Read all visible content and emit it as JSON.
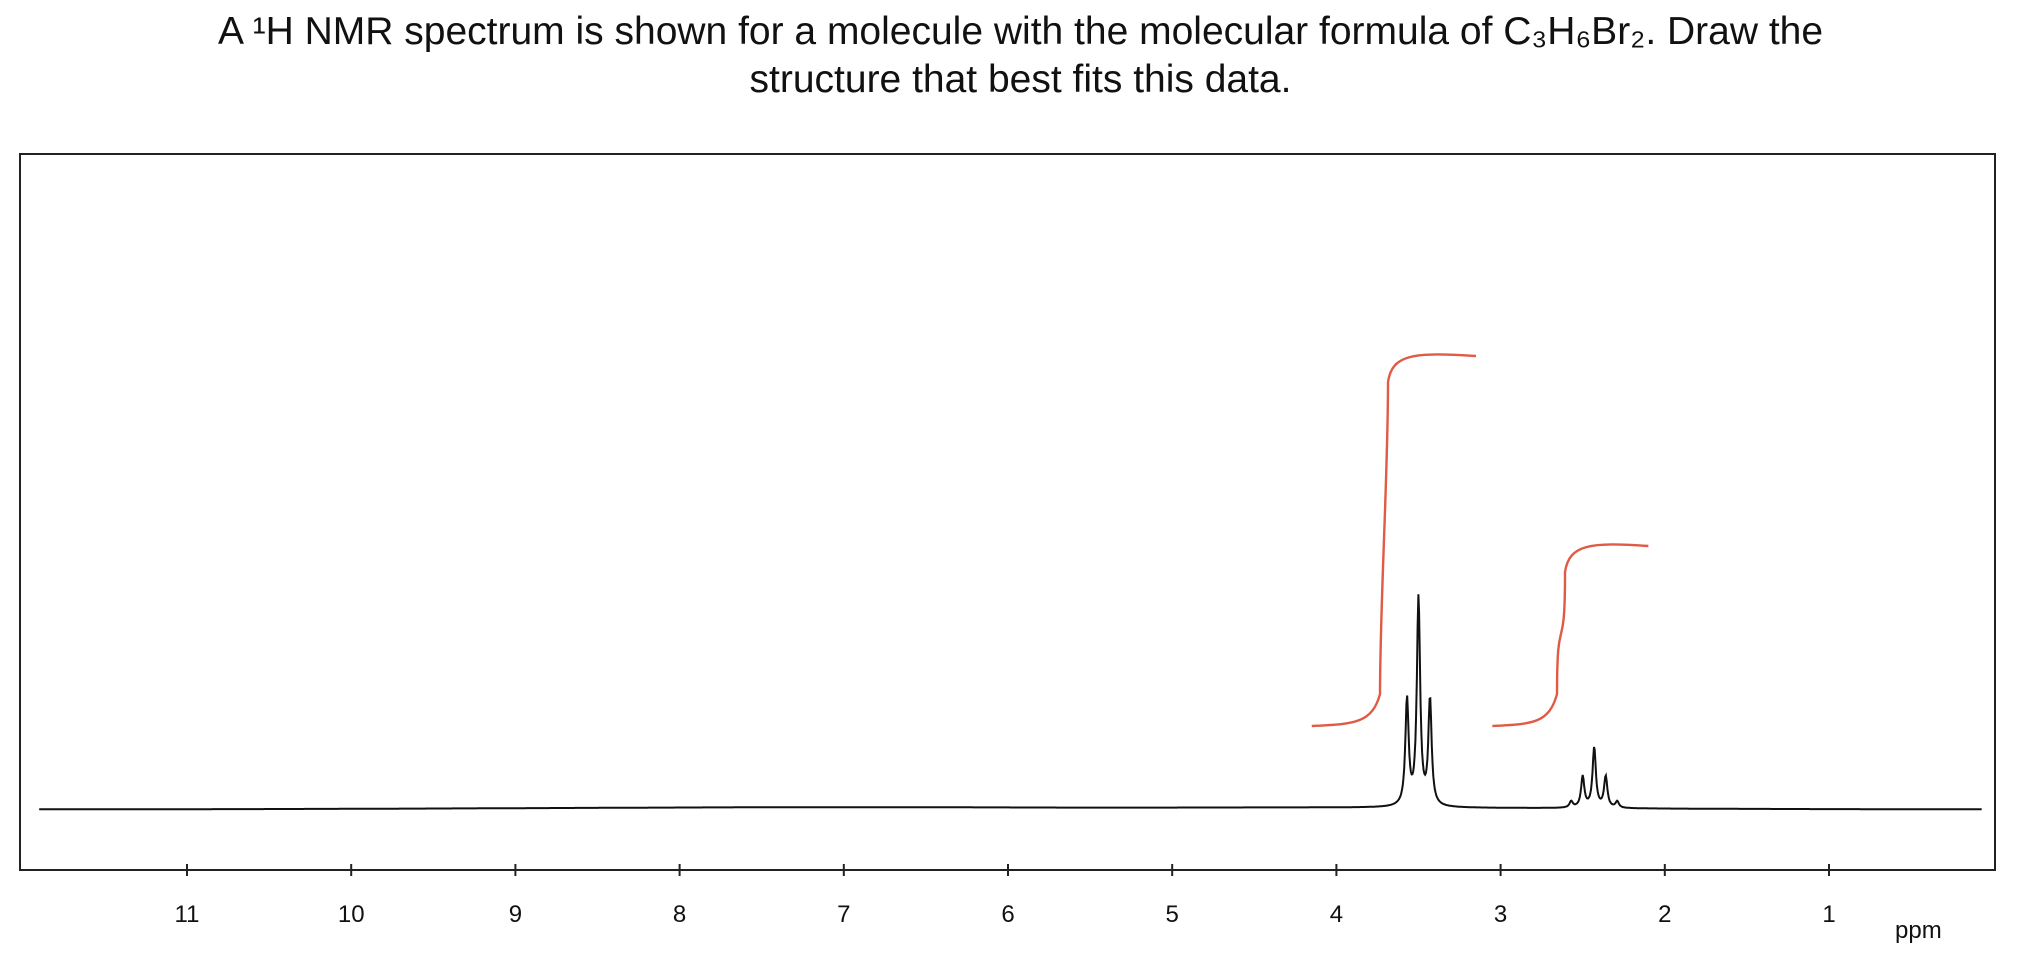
{
  "question": {
    "line1": "A ¹H NMR spectrum is shown for a molecule with the molecular formula of C₃H₆Br₂. Draw the",
    "line2": "structure that best fits this data."
  },
  "chart_data": {
    "type": "line",
    "title": "",
    "xlabel": "ppm",
    "ylabel": "",
    "xlim": [
      12.0,
      0.0
    ],
    "x_reversed": true,
    "grid": false,
    "ticks": [
      11,
      10,
      9,
      8,
      7,
      6,
      5,
      4,
      3,
      2,
      1
    ],
    "tick_labels": [
      "11",
      "10",
      "9",
      "8",
      "7",
      "6",
      "5",
      "4",
      "3",
      "2",
      "1"
    ],
    "series": [
      {
        "color": "#111111",
        "peaks": [
          {
            "shift": 3.57,
            "relative_height": 0.51
          },
          {
            "shift": 3.5,
            "relative_height": 1.0
          },
          {
            "shift": 3.43,
            "relative_height": 0.51
          },
          {
            "shift": 2.57,
            "relative_height": 0.03
          },
          {
            "shift": 2.5,
            "relative_height": 0.15
          },
          {
            "shift": 2.43,
            "relative_height": 0.29
          },
          {
            "shift": 2.36,
            "relative_height": 0.15
          },
          {
            "shift": 2.29,
            "relative_height": 0.03
          }
        ]
      }
    ],
    "integration_curves": [
      {
        "color": "#e05a44",
        "from_shift": 4.15,
        "to_shift": 3.15,
        "relative_rise": 1.0
      },
      {
        "color": "#e05a44",
        "from_shift": 3.05,
        "to_shift": 2.1,
        "relative_rise": 0.5
      }
    ]
  }
}
